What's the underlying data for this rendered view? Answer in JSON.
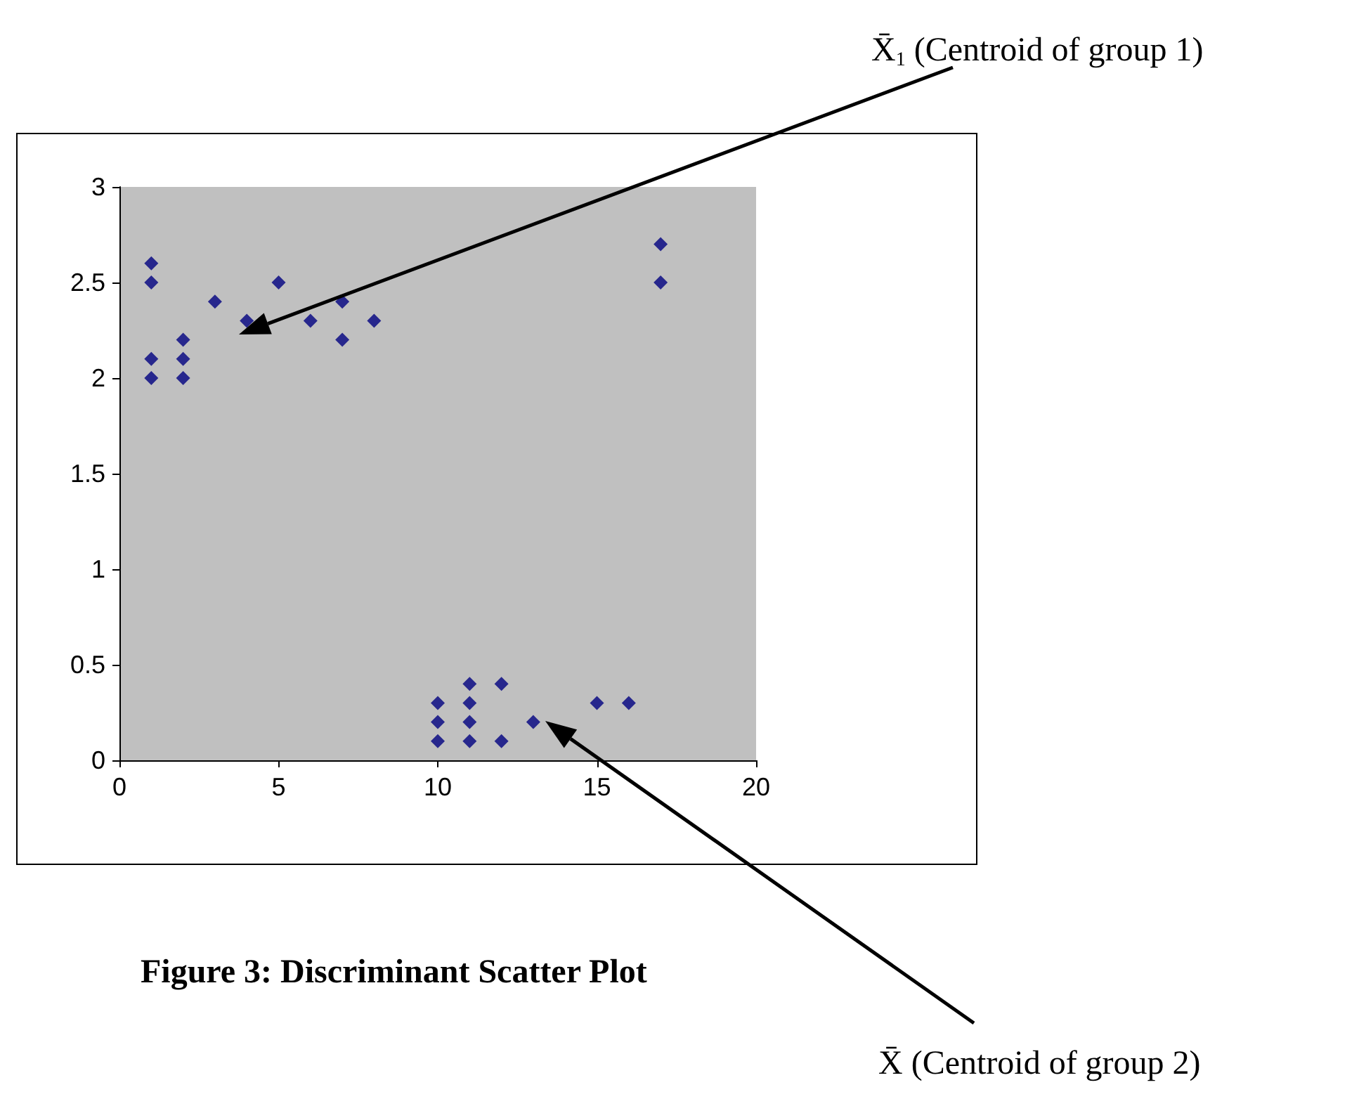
{
  "chart_data": {
    "type": "scatter",
    "title": "Figure 3: Discriminant Scatter Plot",
    "series": [
      {
        "color": "#000080",
        "x": [
          1,
          1,
          1,
          1,
          2,
          2,
          2,
          3,
          4,
          5,
          6,
          7,
          7,
          8,
          17,
          17,
          10,
          10,
          10,
          11,
          11,
          11,
          11,
          12,
          12,
          13,
          15,
          16
        ],
        "values": [
          2.6,
          2.5,
          2.1,
          2.0,
          2.2,
          2.1,
          2.0,
          2.4,
          2.3,
          2.5,
          2.3,
          2.4,
          2.2,
          2.3,
          2.7,
          2.5,
          0.3,
          0.2,
          0.1,
          0.4,
          0.3,
          0.2,
          0.1,
          0.4,
          0.1,
          0.2,
          0.3,
          0.3
        ]
      }
    ],
    "xlim": [
      0,
      20
    ],
    "xticks": [
      0,
      5,
      10,
      15,
      20
    ],
    "ylim": [
      0,
      3
    ],
    "yticks": [
      0,
      0.5,
      1,
      1.5,
      2,
      2.5,
      3
    ],
    "grid": false,
    "marker": "diamond",
    "annotations": [
      "X̄$_{1}$ (Centroid of group 1)",
      "X̄ (Centroid of group 2)"
    ]
  }
}
